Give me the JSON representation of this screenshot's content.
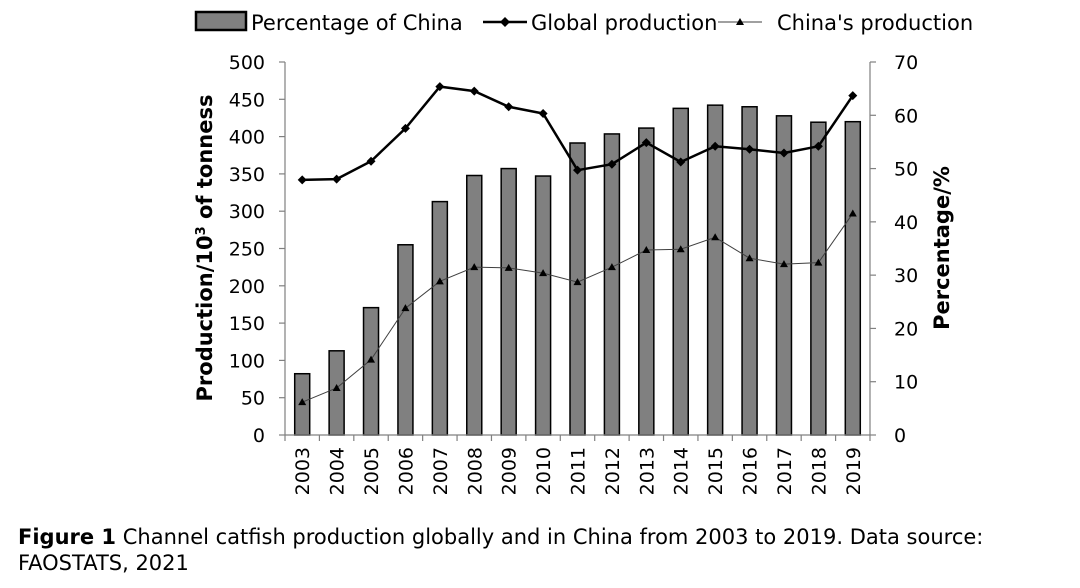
{
  "chart_data": {
    "type": "bar+line",
    "categories": [
      "2003",
      "2004",
      "2005",
      "2006",
      "2007",
      "2008",
      "2009",
      "2010",
      "2011",
      "2012",
      "2013",
      "2014",
      "2015",
      "2016",
      "2017",
      "2018",
      "2019"
    ],
    "bar_series": {
      "name": "Percentage of China",
      "axis": "right",
      "values": [
        11.5,
        15.8,
        23.9,
        35.7,
        43.8,
        48.7,
        50.0,
        48.6,
        54.8,
        56.5,
        57.6,
        61.3,
        61.9,
        61.6,
        59.9,
        58.7,
        58.8
      ]
    },
    "line_series": [
      {
        "name": "Global production",
        "axis": "left",
        "marker": "diamond",
        "values": [
          342,
          343,
          367,
          411,
          467,
          461,
          440,
          431,
          355,
          363,
          392,
          366,
          387,
          383,
          378,
          387,
          455
        ]
      },
      {
        "name": "China's production",
        "axis": "left",
        "marker": "triangle",
        "values": [
          44,
          63,
          101,
          170,
          206,
          225,
          224,
          217,
          205,
          225,
          248,
          249,
          265,
          237,
          229,
          231,
          297
        ]
      }
    ],
    "left_axis": {
      "label_main": "Production/10",
      "label_sup": "3",
      "label_tail": " of tonness",
      "ticks": [
        0,
        50,
        100,
        150,
        200,
        250,
        300,
        350,
        400,
        450,
        500
      ],
      "ylim": [
        0,
        500
      ]
    },
    "right_axis": {
      "label": "Percentage/%",
      "ticks": [
        0,
        10,
        20,
        30,
        40,
        50,
        60,
        70
      ],
      "ylim": [
        0,
        70
      ]
    },
    "legend": {
      "placement": "top",
      "entries": [
        "Percentage of China",
        "Global production",
        "China's production"
      ]
    },
    "grid": false
  },
  "caption": {
    "label": "Figure 1",
    "text": " Channel catfish production globally and in China from 2003 to 2019. Data source: FAOSTATS, 2021"
  },
  "colors": {
    "bar_fill": "#808080",
    "bar_stroke": "#000000",
    "global_line": "#000000",
    "china_line": "#404040"
  }
}
